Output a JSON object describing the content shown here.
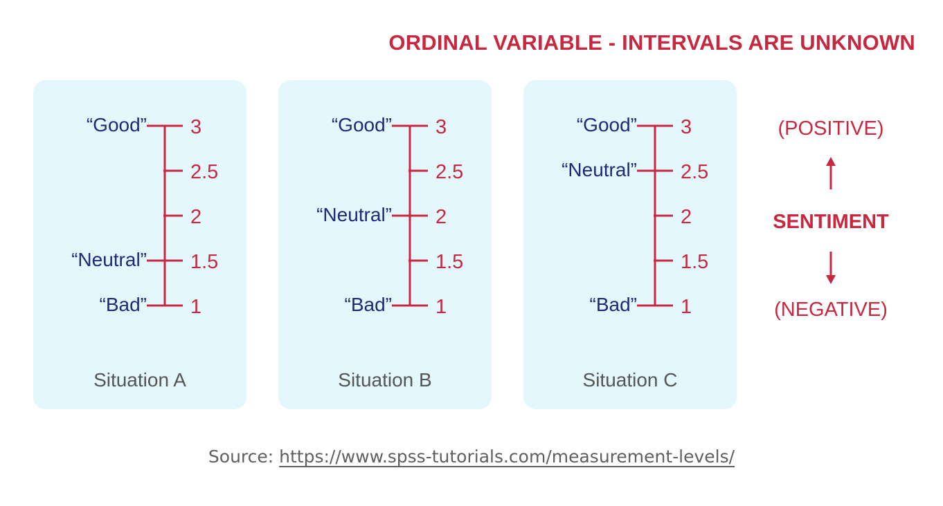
{
  "title": "ORDINAL VARIABLE - INTERVALS ARE UNKNOWN",
  "colors": {
    "accent": "#c8283f",
    "category_label": "#1d2a7a",
    "panel_bg": "#e3f7fc",
    "caption": "#555555"
  },
  "scale_ticks": [
    "3",
    "2.5",
    "2",
    "1.5",
    "1"
  ],
  "situations": [
    {
      "name": "Situation A",
      "labels": [
        {
          "text": "“Good”",
          "value": 3
        },
        {
          "text": "“Neutral”",
          "value": 1.5
        },
        {
          "text": "“Bad”",
          "value": 1
        }
      ]
    },
    {
      "name": "Situation B",
      "labels": [
        {
          "text": "“Good”",
          "value": 3
        },
        {
          "text": "“Neutral”",
          "value": 2
        },
        {
          "text": "“Bad”",
          "value": 1
        }
      ]
    },
    {
      "name": "Situation C",
      "labels": [
        {
          "text": "“Good”",
          "value": 3
        },
        {
          "text": "“Neutral”",
          "value": 2.5
        },
        {
          "text": "“Bad”",
          "value": 1
        }
      ]
    }
  ],
  "sentiment": {
    "positive": "(POSITIVE)",
    "label": "SENTIMENT",
    "negative": "(NEGATIVE)"
  },
  "source": {
    "prefix": "Source:",
    "link": "https://www.spss-tutorials.com/measurement-levels/"
  }
}
